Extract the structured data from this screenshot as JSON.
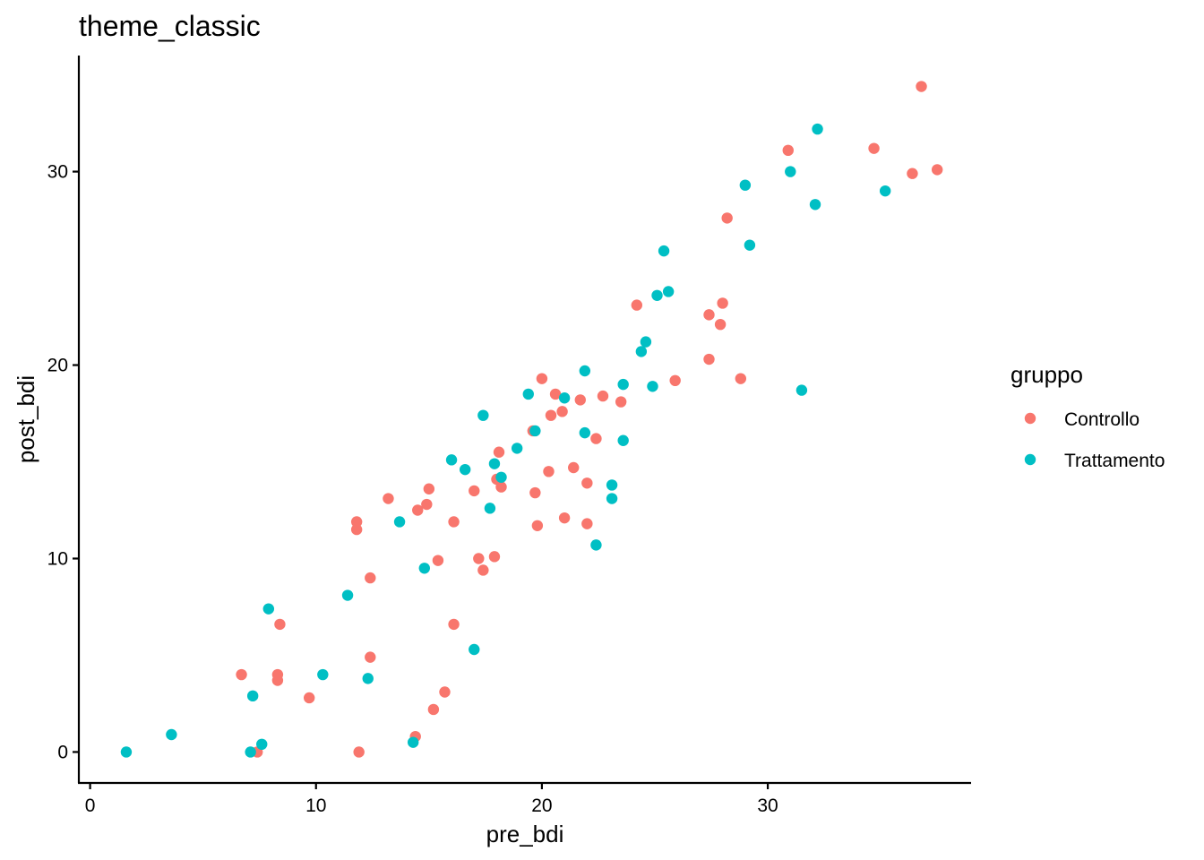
{
  "chart_data": {
    "type": "scatter",
    "title": "theme_classic",
    "xlabel": "pre_bdi",
    "ylabel": "post_bdi",
    "xlim": [
      -0.5,
      39
    ],
    "ylim": [
      -1.6,
      36
    ],
    "x_ticks": [
      0,
      10,
      20,
      30
    ],
    "y_ticks": [
      0,
      10,
      20,
      30
    ],
    "grid": false,
    "legend": {
      "title": "gruppo",
      "placement": "right"
    },
    "series": [
      {
        "name": "Controllo",
        "color": "#F8766D",
        "points": [
          [
            36.8,
            34.4
          ],
          [
            37.5,
            30.1
          ],
          [
            36.4,
            29.9
          ],
          [
            34.7,
            31.2
          ],
          [
            30.9,
            31.1
          ],
          [
            28.2,
            27.6
          ],
          [
            24.2,
            23.1
          ],
          [
            28.0,
            23.2
          ],
          [
            27.4,
            22.6
          ],
          [
            27.9,
            22.1
          ],
          [
            27.4,
            20.3
          ],
          [
            28.8,
            19.3
          ],
          [
            25.9,
            19.2
          ],
          [
            20.0,
            19.3
          ],
          [
            20.6,
            18.5
          ],
          [
            21.7,
            18.2
          ],
          [
            22.7,
            18.4
          ],
          [
            23.5,
            18.1
          ],
          [
            20.9,
            17.6
          ],
          [
            20.4,
            17.4
          ],
          [
            19.6,
            16.6
          ],
          [
            22.4,
            16.2
          ],
          [
            18.1,
            15.5
          ],
          [
            20.3,
            14.5
          ],
          [
            21.4,
            14.7
          ],
          [
            18.0,
            14.1
          ],
          [
            18.2,
            13.7
          ],
          [
            22.0,
            13.9
          ],
          [
            17.0,
            13.5
          ],
          [
            19.7,
            13.4
          ],
          [
            15.0,
            13.6
          ],
          [
            13.2,
            13.1
          ],
          [
            14.9,
            12.8
          ],
          [
            14.5,
            12.5
          ],
          [
            11.8,
            11.9
          ],
          [
            11.8,
            11.5
          ],
          [
            16.1,
            11.9
          ],
          [
            19.8,
            11.7
          ],
          [
            21.0,
            12.1
          ],
          [
            22.0,
            11.8
          ],
          [
            15.4,
            9.9
          ],
          [
            17.2,
            10.0
          ],
          [
            17.9,
            10.1
          ],
          [
            17.4,
            9.4
          ],
          [
            12.4,
            9.0
          ],
          [
            8.4,
            6.6
          ],
          [
            16.1,
            6.6
          ],
          [
            12.4,
            4.9
          ],
          [
            6.7,
            4.0
          ],
          [
            8.3,
            4.0
          ],
          [
            8.3,
            3.7
          ],
          [
            9.7,
            2.8
          ],
          [
            15.7,
            3.1
          ],
          [
            15.2,
            2.2
          ],
          [
            14.4,
            0.8
          ],
          [
            7.4,
            0.0
          ],
          [
            11.9,
            0.0
          ]
        ]
      },
      {
        "name": "Trattamento",
        "color": "#00BFC4",
        "points": [
          [
            32.2,
            32.2
          ],
          [
            31.0,
            30.0
          ],
          [
            35.2,
            29.0
          ],
          [
            29.0,
            29.3
          ],
          [
            32.1,
            28.3
          ],
          [
            29.2,
            26.2
          ],
          [
            25.4,
            25.9
          ],
          [
            25.6,
            23.8
          ],
          [
            25.1,
            23.6
          ],
          [
            24.6,
            21.2
          ],
          [
            24.4,
            20.7
          ],
          [
            21.9,
            19.7
          ],
          [
            23.6,
            19.0
          ],
          [
            24.9,
            18.9
          ],
          [
            31.5,
            18.7
          ],
          [
            19.4,
            18.5
          ],
          [
            21.0,
            18.3
          ],
          [
            17.4,
            17.4
          ],
          [
            19.7,
            16.6
          ],
          [
            21.9,
            16.5
          ],
          [
            23.6,
            16.1
          ],
          [
            18.9,
            15.7
          ],
          [
            16.0,
            15.1
          ],
          [
            17.9,
            14.9
          ],
          [
            16.6,
            14.6
          ],
          [
            18.2,
            14.2
          ],
          [
            23.1,
            13.8
          ],
          [
            23.1,
            13.1
          ],
          [
            17.7,
            12.6
          ],
          [
            13.7,
            11.9
          ],
          [
            22.4,
            10.7
          ],
          [
            14.8,
            9.5
          ],
          [
            11.4,
            8.1
          ],
          [
            7.9,
            7.4
          ],
          [
            17.0,
            5.3
          ],
          [
            10.3,
            4.0
          ],
          [
            12.3,
            3.8
          ],
          [
            7.2,
            2.9
          ],
          [
            3.6,
            0.9
          ],
          [
            14.3,
            0.5
          ],
          [
            7.6,
            0.4
          ],
          [
            1.6,
            0.0
          ],
          [
            7.1,
            0.0
          ]
        ]
      }
    ]
  }
}
